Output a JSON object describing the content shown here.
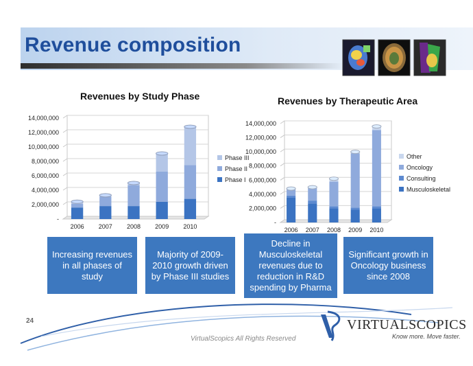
{
  "slide": {
    "title": "Revenue composition",
    "page_number": "24",
    "footer": "VirtualScopics All Rights Reserved"
  },
  "logo": {
    "name": "VirtualScopics",
    "display_name": "VIRTUALSCOPICS",
    "tagline": "Know more. Move faster."
  },
  "colors": {
    "title": "#1f4e9c",
    "box": "#3d78bf",
    "phase3": "#b4c6e7",
    "phase2": "#8faadc",
    "phase1": "#3b73c2"
  },
  "boxes": [
    {
      "text": "Increasing revenues in all phases of study"
    },
    {
      "text": "Majority of 2009-2010 growth driven by Phase III studies"
    },
    {
      "text": "Decline in Musculoskeletal revenues due to reduction in R&D spending by Pharma"
    },
    {
      "text": "Significant growth in Oncology business since 2008"
    }
  ],
  "chart_data": [
    {
      "type": "bar",
      "stacked": true,
      "title": "Revenues by Study Phase",
      "categories": [
        "2006",
        "2007",
        "2008",
        "2009",
        "2010"
      ],
      "ylim": [
        0,
        14000000
      ],
      "yticks": [
        "-",
        "2,000,000",
        "4,000,000",
        "6,000,000",
        "8,000,000",
        "10,000,000",
        "12,000,000",
        "14,000,000"
      ],
      "legend_position": "right",
      "series": [
        {
          "name": "Phase I",
          "color": "#3b73c2",
          "values": [
            1600000,
            1800000,
            1800000,
            2400000,
            2800000
          ]
        },
        {
          "name": "Phase II",
          "color": "#8faadc",
          "values": [
            500000,
            1300000,
            2900000,
            4200000,
            4700000
          ]
        },
        {
          "name": "Phase III",
          "color": "#b4c6e7",
          "values": [
            300000,
            200000,
            300000,
            2500000,
            5300000
          ]
        }
      ]
    },
    {
      "type": "bar",
      "stacked": true,
      "title": "Revenues by Therapeutic Area",
      "categories": [
        "2006",
        "2007",
        "2008",
        "2009",
        "2010"
      ],
      "ylim": [
        0,
        14000000
      ],
      "yticks": [
        "-",
        "2,000,000",
        "4,000,000",
        "6,000,000",
        "8,000,000",
        "10,000,000",
        "12,000,000",
        "14,000,000"
      ],
      "legend_position": "right",
      "series": [
        {
          "name": "Musculoskeletal",
          "color": "#3b73c2",
          "values": [
            3500000,
            2700000,
            2000000,
            1800000,
            2000000
          ]
        },
        {
          "name": "Consulting",
          "color": "#5d8ad0",
          "values": [
            300000,
            400000,
            300000,
            300000,
            300000
          ]
        },
        {
          "name": "Oncology",
          "color": "#8faadc",
          "values": [
            900000,
            1800000,
            3500000,
            7700000,
            10800000
          ]
        },
        {
          "name": "Other",
          "color": "#c9d7ee",
          "values": [
            100000,
            100000,
            400000,
            200000,
            500000
          ]
        }
      ]
    }
  ]
}
